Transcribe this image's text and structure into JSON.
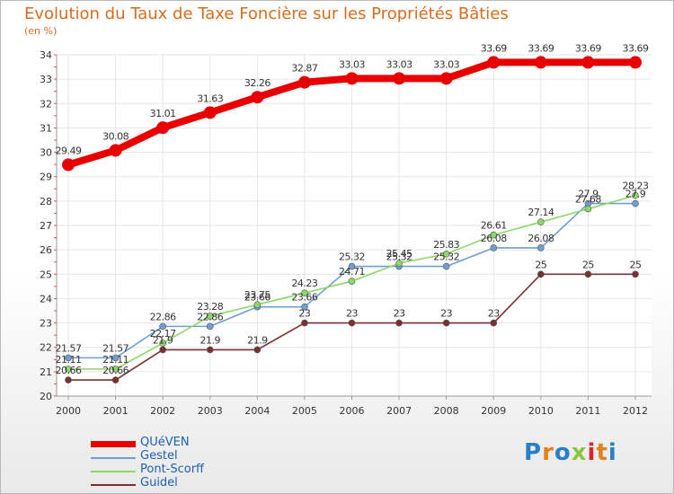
{
  "title": "Evolution du Taux de Taxe Foncière sur les Propriétés Bâties",
  "unit_label": "(en %)",
  "logo_text": "Proxiti",
  "chart_data": {
    "type": "line",
    "x": [
      "2000",
      "2001",
      "2002",
      "2003",
      "2004",
      "2005",
      "2006",
      "2007",
      "2008",
      "2009",
      "2010",
      "2011",
      "2012"
    ],
    "ylim": [
      20,
      34
    ],
    "yticks": [
      20,
      21,
      22,
      23,
      24,
      25,
      26,
      27,
      28,
      29,
      30,
      31,
      32,
      33,
      34
    ],
    "grid": true,
    "series": [
      {
        "name": "QUéVEN",
        "color": "#e80000",
        "values": [
          29.49,
          30.08,
          31.01,
          31.63,
          32.26,
          32.87,
          33.03,
          33.03,
          33.03,
          33.69,
          33.69,
          33.69,
          33.69
        ],
        "labels": [
          "29.49",
          "30.08",
          "31.01",
          "31.63",
          "32.26",
          "32.87",
          "33.03",
          "33.03",
          "33.03",
          "33.69",
          "33.69",
          "33.69",
          "33.69"
        ]
      },
      {
        "name": "Gestel",
        "color": "#6f9fd0",
        "values": [
          21.57,
          21.57,
          22.86,
          22.86,
          23.66,
          23.66,
          25.32,
          25.32,
          25.32,
          26.08,
          26.08,
          27.9,
          27.9
        ],
        "labels": [
          "21.57",
          "21.57",
          "22.86",
          "22.86",
          "23.66",
          "23.66",
          "25.32",
          "25.32",
          "25.32",
          "26.08",
          "26.08",
          "27.9",
          "27.9"
        ]
      },
      {
        "name": "Pont-Scorff",
        "color": "#8ed86a",
        "values": [
          21.11,
          21.11,
          22.17,
          23.28,
          23.75,
          24.23,
          24.71,
          25.45,
          25.83,
          26.61,
          27.14,
          27.68,
          28.23
        ],
        "labels": [
          "21.11",
          "21.11",
          "22.17",
          "23.28",
          "23.75",
          "24.23",
          "24.71",
          "25.45",
          "25.83",
          "26.61",
          "27.14",
          "27.68",
          "28.23"
        ]
      },
      {
        "name": "Guidel",
        "color": "#7a3030",
        "values": [
          20.66,
          20.66,
          21.9,
          21.9,
          21.9,
          23,
          23,
          23,
          23,
          23,
          25,
          25,
          25
        ],
        "labels": [
          "20.66",
          "20.66",
          "21.9",
          "21.9",
          "21.9",
          "23",
          "23",
          "23",
          "23",
          "23",
          "25",
          "25",
          "25"
        ]
      }
    ]
  }
}
